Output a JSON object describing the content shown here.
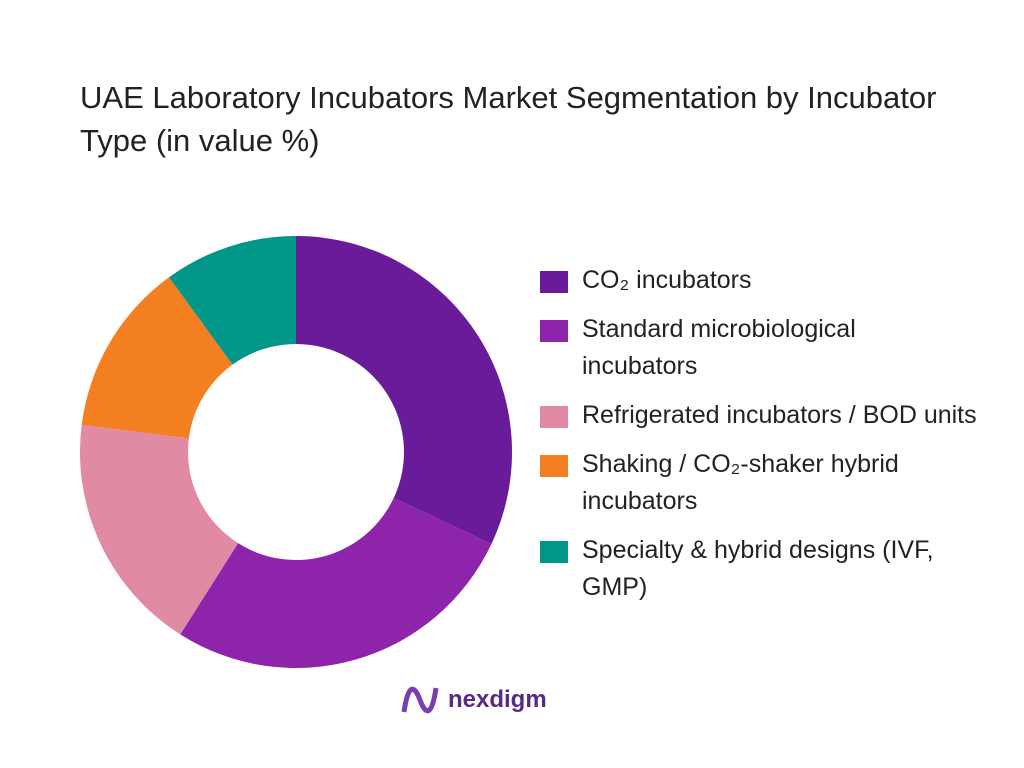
{
  "chart_data": {
    "type": "donut",
    "title": "UAE Laboratory Incubators Market Segmentation by Incubator Type (in value %)",
    "categories": [
      "CO₂ incubators",
      "Standard microbiological incubators",
      "Refrigerated incubators / BOD units",
      "Shaking / CO₂-shaker hybrid incubators",
      "Specialty & hybrid designs (IVF, GMP)"
    ],
    "values": [
      32,
      27,
      18,
      13,
      10
    ],
    "colors": [
      "#6a1b9a",
      "#8e24aa",
      "#e08aa3",
      "#f47f20",
      "#009688"
    ]
  },
  "logo": "nexdigm"
}
